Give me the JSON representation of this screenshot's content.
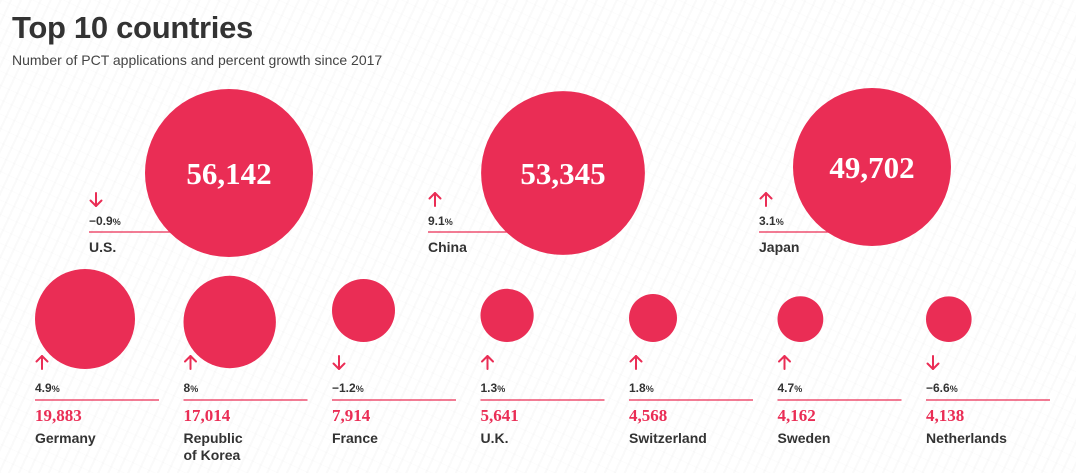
{
  "header": {
    "title": "Top 10 countries",
    "subtitle": "Number of PCT applications and percent growth since 2017"
  },
  "colors": {
    "accent": "#ea2d55",
    "text": "#333333",
    "muted": "#444444"
  },
  "chart_data": {
    "type": "bubble",
    "title": "Top 10 countries",
    "subtitle": "Number of PCT applications and percent growth since 2017",
    "series": [
      {
        "country": "U.S.",
        "applications": 56142,
        "value_label": "56,142",
        "growth_pct": -0.9,
        "growth_label": "−0.9%",
        "direction": "down"
      },
      {
        "country": "China",
        "applications": 53345,
        "value_label": "53,345",
        "growth_pct": 9.1,
        "growth_label": "9.1%",
        "direction": "up"
      },
      {
        "country": "Japan",
        "applications": 49702,
        "value_label": "49,702",
        "growth_pct": 3.1,
        "growth_label": "3.1%",
        "direction": "up"
      },
      {
        "country": "Germany",
        "applications": 19883,
        "value_label": "19,883",
        "growth_pct": 4.9,
        "growth_label": "4.9%",
        "direction": "up"
      },
      {
        "country": "Republic\nof Korea",
        "applications": 17014,
        "value_label": "17,014",
        "growth_pct": 8,
        "growth_label": "8%",
        "direction": "up"
      },
      {
        "country": "France",
        "applications": 7914,
        "value_label": "7,914",
        "growth_pct": -1.2,
        "growth_label": "−1.2%",
        "direction": "down"
      },
      {
        "country": "U.K.",
        "applications": 5641,
        "value_label": "5,641",
        "growth_pct": 1.3,
        "growth_label": "1.3%",
        "direction": "up"
      },
      {
        "country": "Switzerland",
        "applications": 4568,
        "value_label": "4,568",
        "growth_pct": 1.8,
        "growth_label": "1.8%",
        "direction": "up"
      },
      {
        "country": "Sweden",
        "applications": 4162,
        "value_label": "4,162",
        "growth_pct": 4.7,
        "growth_label": "4.7%",
        "direction": "up"
      },
      {
        "country": "Netherlands",
        "applications": 4138,
        "value_label": "4,138",
        "growth_pct": -6.6,
        "growth_label": "−6.6%",
        "direction": "down"
      }
    ]
  }
}
